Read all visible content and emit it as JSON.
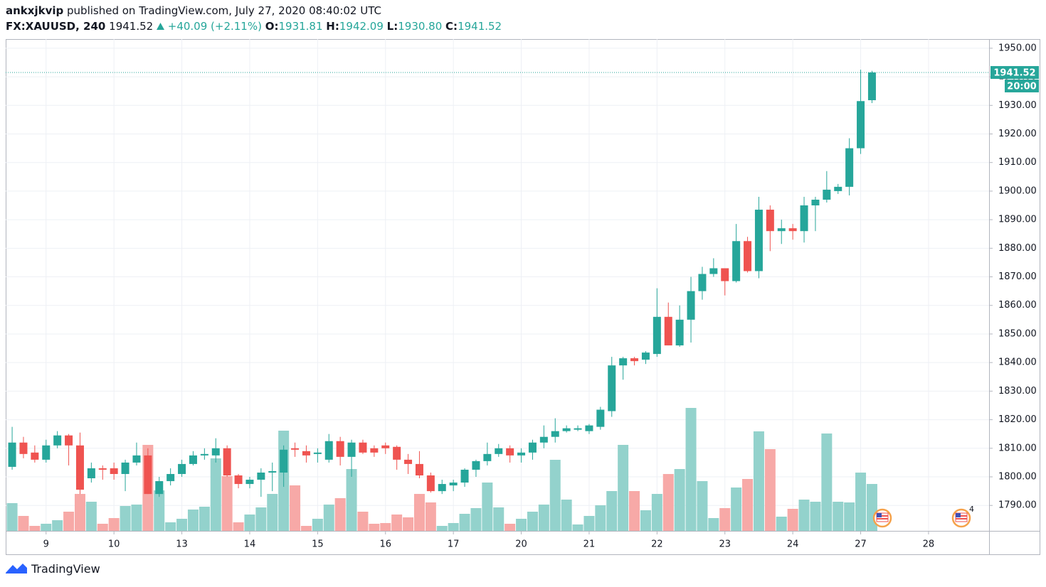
{
  "header": {
    "author": "ankxjkvip",
    "published": "published on TradingView.com, July 27, 2020 08:40:02 UTC",
    "symbol": "FX:XAUUSD, 240",
    "last": "1941.52",
    "change": "+40.09 (+2.11%)",
    "open_label": "O:",
    "open": "1931.81",
    "high_label": "H:",
    "high": "1942.09",
    "low_label": "L:",
    "low": "1930.80",
    "close_label": "C:",
    "close": "1941.52"
  },
  "chart_data": {
    "type": "candlestick",
    "open": [
      1803.5,
      1812,
      1808.5,
      1806,
      1811,
      1814.5,
      1811,
      1799.5,
      1803,
      1803,
      1801,
      1805,
      1807.5,
      1794,
      1798.5,
      1801,
      1804.5,
      1807.5,
      1807.5,
      1810,
      1800.5,
      1797.5,
      1799,
      1801.5,
      1801.5,
      1810,
      1809,
      1808,
      1806,
      1812.5,
      1807,
      1812,
      1810,
      1811,
      1810.5,
      1806,
      1804.5,
      1800.5,
      1795,
      1797,
      1798,
      1802.5,
      1805.5,
      1808,
      1810,
      1807.5,
      1808.5,
      1812,
      1814,
      1816,
      1816.5,
      1816,
      1817.5,
      1823,
      1839,
      1841.5,
      1841,
      1843,
      1856,
      1846,
      1855,
      1865,
      1871,
      1873,
      1868.5,
      1882.5,
      1872,
      1893.5,
      1886,
      1887,
      1886,
      1895,
      1897,
      1900,
      1901.5,
      1915,
      1931.81
    ],
    "high": [
      1817.5,
      1814,
      1811,
      1813,
      1816,
      1815,
      1815.5,
      1805,
      1804,
      1805,
      1806,
      1812,
      1810,
      1800,
      1803,
      1806,
      1809,
      1810,
      1813.5,
      1811,
      1801,
      1800,
      1803,
      1805,
      1811,
      1812,
      1811,
      1810,
      1815,
      1814,
      1813,
      1813,
      1811,
      1812,
      1811,
      1808,
      1809,
      1801.5,
      1799,
      1799,
      1803,
      1806,
      1812,
      1811.5,
      1811,
      1810,
      1813,
      1818,
      1820.5,
      1818,
      1818,
      1818.5,
      1824.5,
      1842,
      1842,
      1842,
      1844,
      1866,
      1861,
      1860,
      1870,
      1873.5,
      1876.5,
      1873,
      1888.5,
      1884,
      1898,
      1895,
      1890,
      1888.5,
      1898,
      1898,
      1907,
      1902.5,
      1918.5,
      1942.5,
      1942.09
    ],
    "low": [
      1802.5,
      1806.5,
      1805,
      1805,
      1810,
      1804,
      1794,
      1798,
      1799,
      1799,
      1795,
      1804,
      1794,
      1793,
      1797,
      1800,
      1804,
      1806,
      1805,
      1800,
      1796,
      1796,
      1793,
      1795,
      1796.5,
      1807,
      1805,
      1805,
      1805,
      1804,
      1800,
      1808,
      1807,
      1808,
      1802.5,
      1801,
      1799.5,
      1794.5,
      1794,
      1795,
      1796.5,
      1800,
      1804,
      1807,
      1805,
      1805,
      1806,
      1810,
      1812,
      1815.5,
      1816,
      1815,
      1816.5,
      1821,
      1834,
      1839,
      1839.5,
      1842,
      1846,
      1845.5,
      1847,
      1862,
      1870,
      1863.5,
      1868,
      1871.5,
      1869.5,
      1879,
      1881.5,
      1883,
      1882,
      1886,
      1896,
      1899,
      1898.5,
      1913,
      1930.8
    ],
    "close": [
      1812,
      1808,
      1806,
      1811,
      1814.5,
      1811,
      1795.5,
      1803,
      1802.5,
      1801,
      1805,
      1807.5,
      1794,
      1798.5,
      1801,
      1804.5,
      1807.5,
      1808,
      1810,
      1800.5,
      1797.5,
      1799,
      1801.5,
      1802,
      1809.5,
      1809.5,
      1807.5,
      1808.5,
      1812.5,
      1807,
      1812,
      1808.5,
      1808.5,
      1810,
      1806,
      1804.5,
      1800.5,
      1795,
      1797.5,
      1798,
      1802.5,
      1805.5,
      1808,
      1810,
      1807.5,
      1808.5,
      1812,
      1814,
      1816,
      1817,
      1817,
      1818,
      1823.5,
      1839,
      1841.5,
      1840.5,
      1843.5,
      1856,
      1846,
      1855,
      1865,
      1871,
      1873,
      1868.5,
      1882.5,
      1872,
      1893.5,
      1886,
      1887,
      1886,
      1895,
      1897,
      1900.5,
      1901.5,
      1915,
      1931.5,
      1941.52
    ],
    "volume": [
      39,
      21,
      7,
      10,
      15,
      27,
      52,
      41,
      10,
      18,
      35,
      37,
      121,
      57,
      12,
      17,
      30,
      34,
      102,
      77,
      12,
      23,
      33,
      52,
      141,
      64,
      7,
      17,
      37,
      46,
      87,
      27,
      10,
      11,
      23,
      19,
      52,
      40,
      7,
      11,
      24,
      32,
      68,
      33,
      10,
      17,
      27,
      37,
      100,
      44,
      9,
      21,
      36,
      56,
      121,
      56,
      29,
      52,
      80,
      87,
      173,
      70,
      18,
      32,
      61,
      73,
      140,
      115,
      20,
      31,
      44,
      41,
      137,
      41,
      40,
      82,
      66
    ],
    "up_color": "#26a69a",
    "down_color": "#ef5350",
    "up_volume_color": "#93d2cc",
    "down_volume_color": "#f7a9a7",
    "xlim": [
      -0.57,
      86.35
    ],
    "xticks": [
      {
        "value": 3,
        "label": "9"
      },
      {
        "value": 9,
        "label": "10"
      },
      {
        "value": 15,
        "label": "13"
      },
      {
        "value": 21,
        "label": "14"
      },
      {
        "value": 27,
        "label": "15"
      },
      {
        "value": 33,
        "label": "16"
      },
      {
        "value": 39,
        "label": "17"
      },
      {
        "value": 45,
        "label": "20"
      },
      {
        "value": 51,
        "label": "21"
      },
      {
        "value": 57,
        "label": "22"
      },
      {
        "value": 63,
        "label": "23"
      },
      {
        "value": 69,
        "label": "24"
      },
      {
        "value": 75,
        "label": "27"
      },
      {
        "value": 81,
        "label": "28"
      }
    ],
    "ylim": [
      1781.1,
      1953.2
    ],
    "yticks": [
      {
        "value": 1790,
        "label": "1790.00"
      },
      {
        "value": 1800,
        "label": "1800.00"
      },
      {
        "value": 1810,
        "label": "1810.00"
      },
      {
        "value": 1820,
        "label": "1820.00"
      },
      {
        "value": 1830,
        "label": "1830.00"
      },
      {
        "value": 1840,
        "label": "1840.00"
      },
      {
        "value": 1850,
        "label": "1850.00"
      },
      {
        "value": 1860,
        "label": "1860.00"
      },
      {
        "value": 1870,
        "label": "1870.00"
      },
      {
        "value": 1880,
        "label": "1880.00"
      },
      {
        "value": 1890,
        "label": "1890.00"
      },
      {
        "value": 1900,
        "label": "1900.00"
      },
      {
        "value": 1910,
        "label": "1910.00"
      },
      {
        "value": 1920,
        "label": "1920.00"
      },
      {
        "value": 1930,
        "label": "1930.00"
      },
      {
        "value": 1940,
        "label": "1940.00"
      },
      {
        "value": 1950,
        "label": "1950.00"
      }
    ],
    "grid": true,
    "last_price": {
      "value": 1941.52,
      "label": "1941.52"
    },
    "countdown": "20:00",
    "event_badge": "4"
  },
  "footer": {
    "brand": "TradingView"
  }
}
